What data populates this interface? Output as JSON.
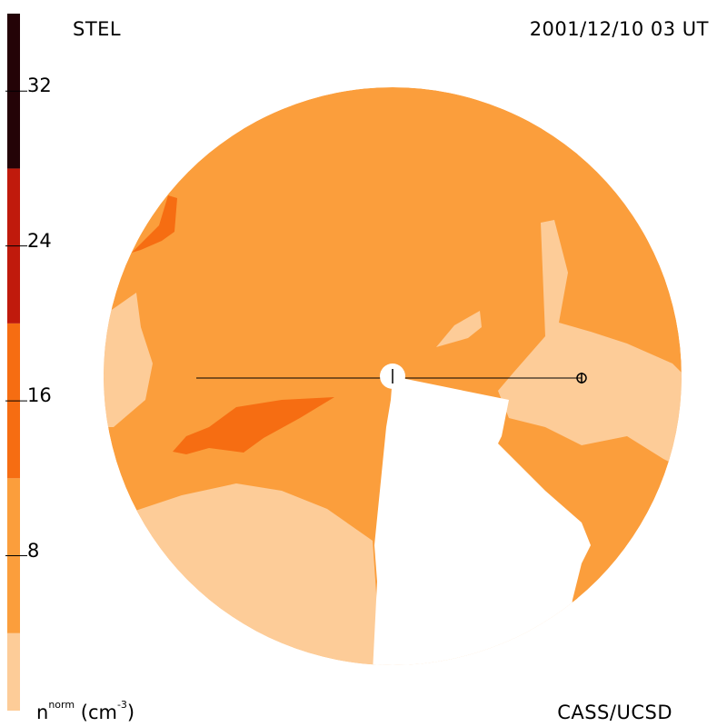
{
  "header": {
    "instrument": "STEL",
    "datetime": "2001/12/10 03 UT"
  },
  "footer": {
    "quantity": "n",
    "quantity_sup": "norm",
    "unit_prefix": "(cm",
    "unit_sup": "-3",
    "unit_suffix": ")",
    "credit": "CASS/UCSD"
  },
  "colorbar": {
    "range": [
      0,
      36
    ],
    "ticks": [
      "32",
      "24",
      "16",
      "8"
    ],
    "tick_values": [
      32,
      24,
      16,
      8
    ],
    "bands": [
      {
        "from": 0,
        "to": 4,
        "color": "#fdcc98"
      },
      {
        "from": 4,
        "to": 12,
        "color": "#fb9e3c"
      },
      {
        "from": 12,
        "to": 20,
        "color": "#f66d12"
      },
      {
        "from": 20,
        "to": 28,
        "color": "#c01a0c"
      },
      {
        "from": 28,
        "to": 36,
        "color": "#240307"
      }
    ]
  },
  "map": {
    "background_color": "#fb9e3c",
    "light_color": "#fdcc98",
    "dark_color": "#f66d12",
    "sun_color": "#ffffff",
    "earth_symbol": "earth-icon",
    "sun_symbol": "sun-icon"
  }
}
